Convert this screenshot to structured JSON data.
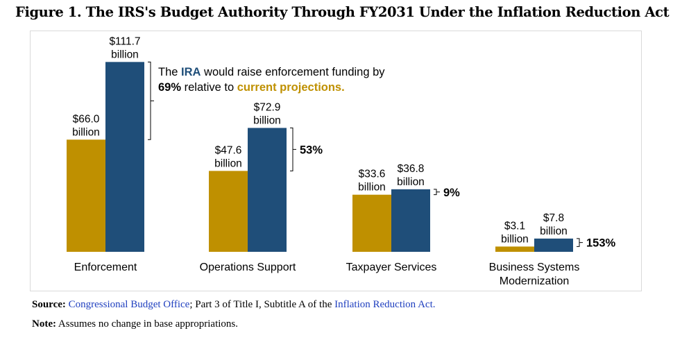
{
  "figure_title": "Figure 1. The IRS's Budget Authority Through FY2031 Under the Inflation Reduction Act",
  "chart_data": {
    "type": "bar",
    "title": "",
    "xlabel": "",
    "ylabel": "",
    "grid": false,
    "categories": [
      [
        "Enforcement"
      ],
      [
        "Operations Support"
      ],
      [
        "Taxpayer Services"
      ],
      [
        "Business Systems",
        "Modernization"
      ]
    ],
    "series": [
      {
        "color": "#bf9000",
        "values": [
          66.0,
          47.6,
          33.6,
          3.1
        ],
        "labels": [
          "$66.0",
          "$47.6",
          "$33.6",
          "$3.1"
        ]
      },
      {
        "color": "#1f4e79",
        "values": [
          111.7,
          72.9,
          36.8,
          7.8
        ],
        "labels": [
          "$111.7",
          "$72.9",
          "$36.8",
          "$7.8"
        ]
      }
    ],
    "unit_label": "billion",
    "percent_increase": [
      "69%",
      "53%",
      "9%",
      "153%"
    ],
    "annotation": {
      "line1_pre": "The ",
      "line1_ira": "IRA",
      "line1_post": " would raise enforcement funding by",
      "line2_pct": "69%",
      "line2_mid": " relative to ",
      "line2_hl": "current projections.",
      "ira_color": "#1f4e79",
      "highlight_color": "#bf9000"
    }
  },
  "footer": {
    "source_label": "Source:",
    "source_link1": "Congressional Budget Office",
    "source_mid": "; Part 3 of Title I, Subtitle A of the ",
    "source_link2": "Inflation Reduction Act.",
    "note_label": "Note:",
    "note_text": " Assumes no change in base appropriations."
  }
}
